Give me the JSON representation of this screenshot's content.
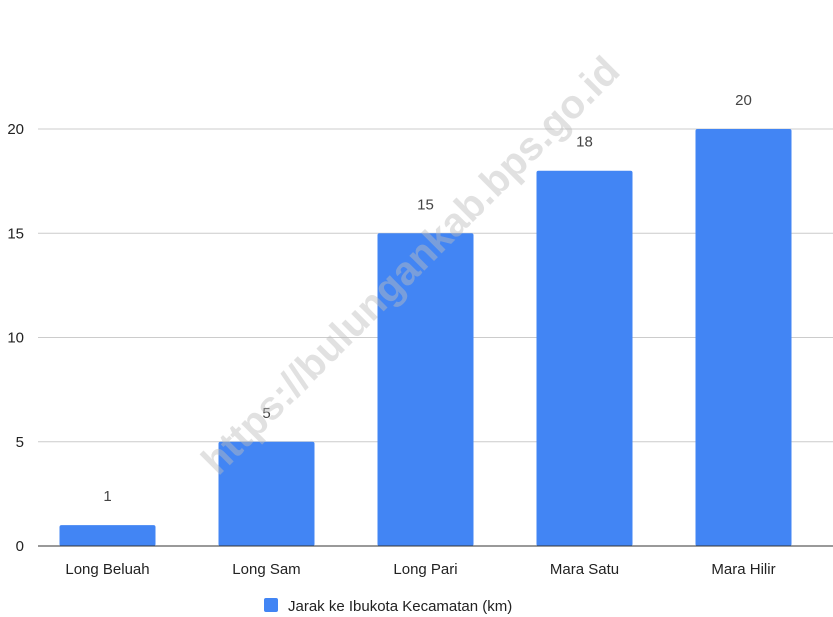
{
  "watermark": "https://bulungankab.bps.go.id",
  "chart_data": {
    "type": "bar",
    "categories": [
      "Long Beluah",
      "Long Sam",
      "Long Pari",
      "Mara Satu",
      "Mara Hilir"
    ],
    "series": [
      {
        "name": "Jarak ke Ibukota Kecamatan (km)",
        "values": [
          1,
          5,
          15,
          18,
          20
        ],
        "color": "#4285f4"
      }
    ],
    "data_labels": [
      "1",
      "5",
      "15",
      "18",
      "20"
    ],
    "yticks": [
      "0",
      "5",
      "10",
      "15",
      "20"
    ],
    "ylim": [
      0,
      20
    ],
    "grid": true,
    "legend_position": "bottom",
    "title": "",
    "xlabel": "",
    "ylabel": ""
  }
}
